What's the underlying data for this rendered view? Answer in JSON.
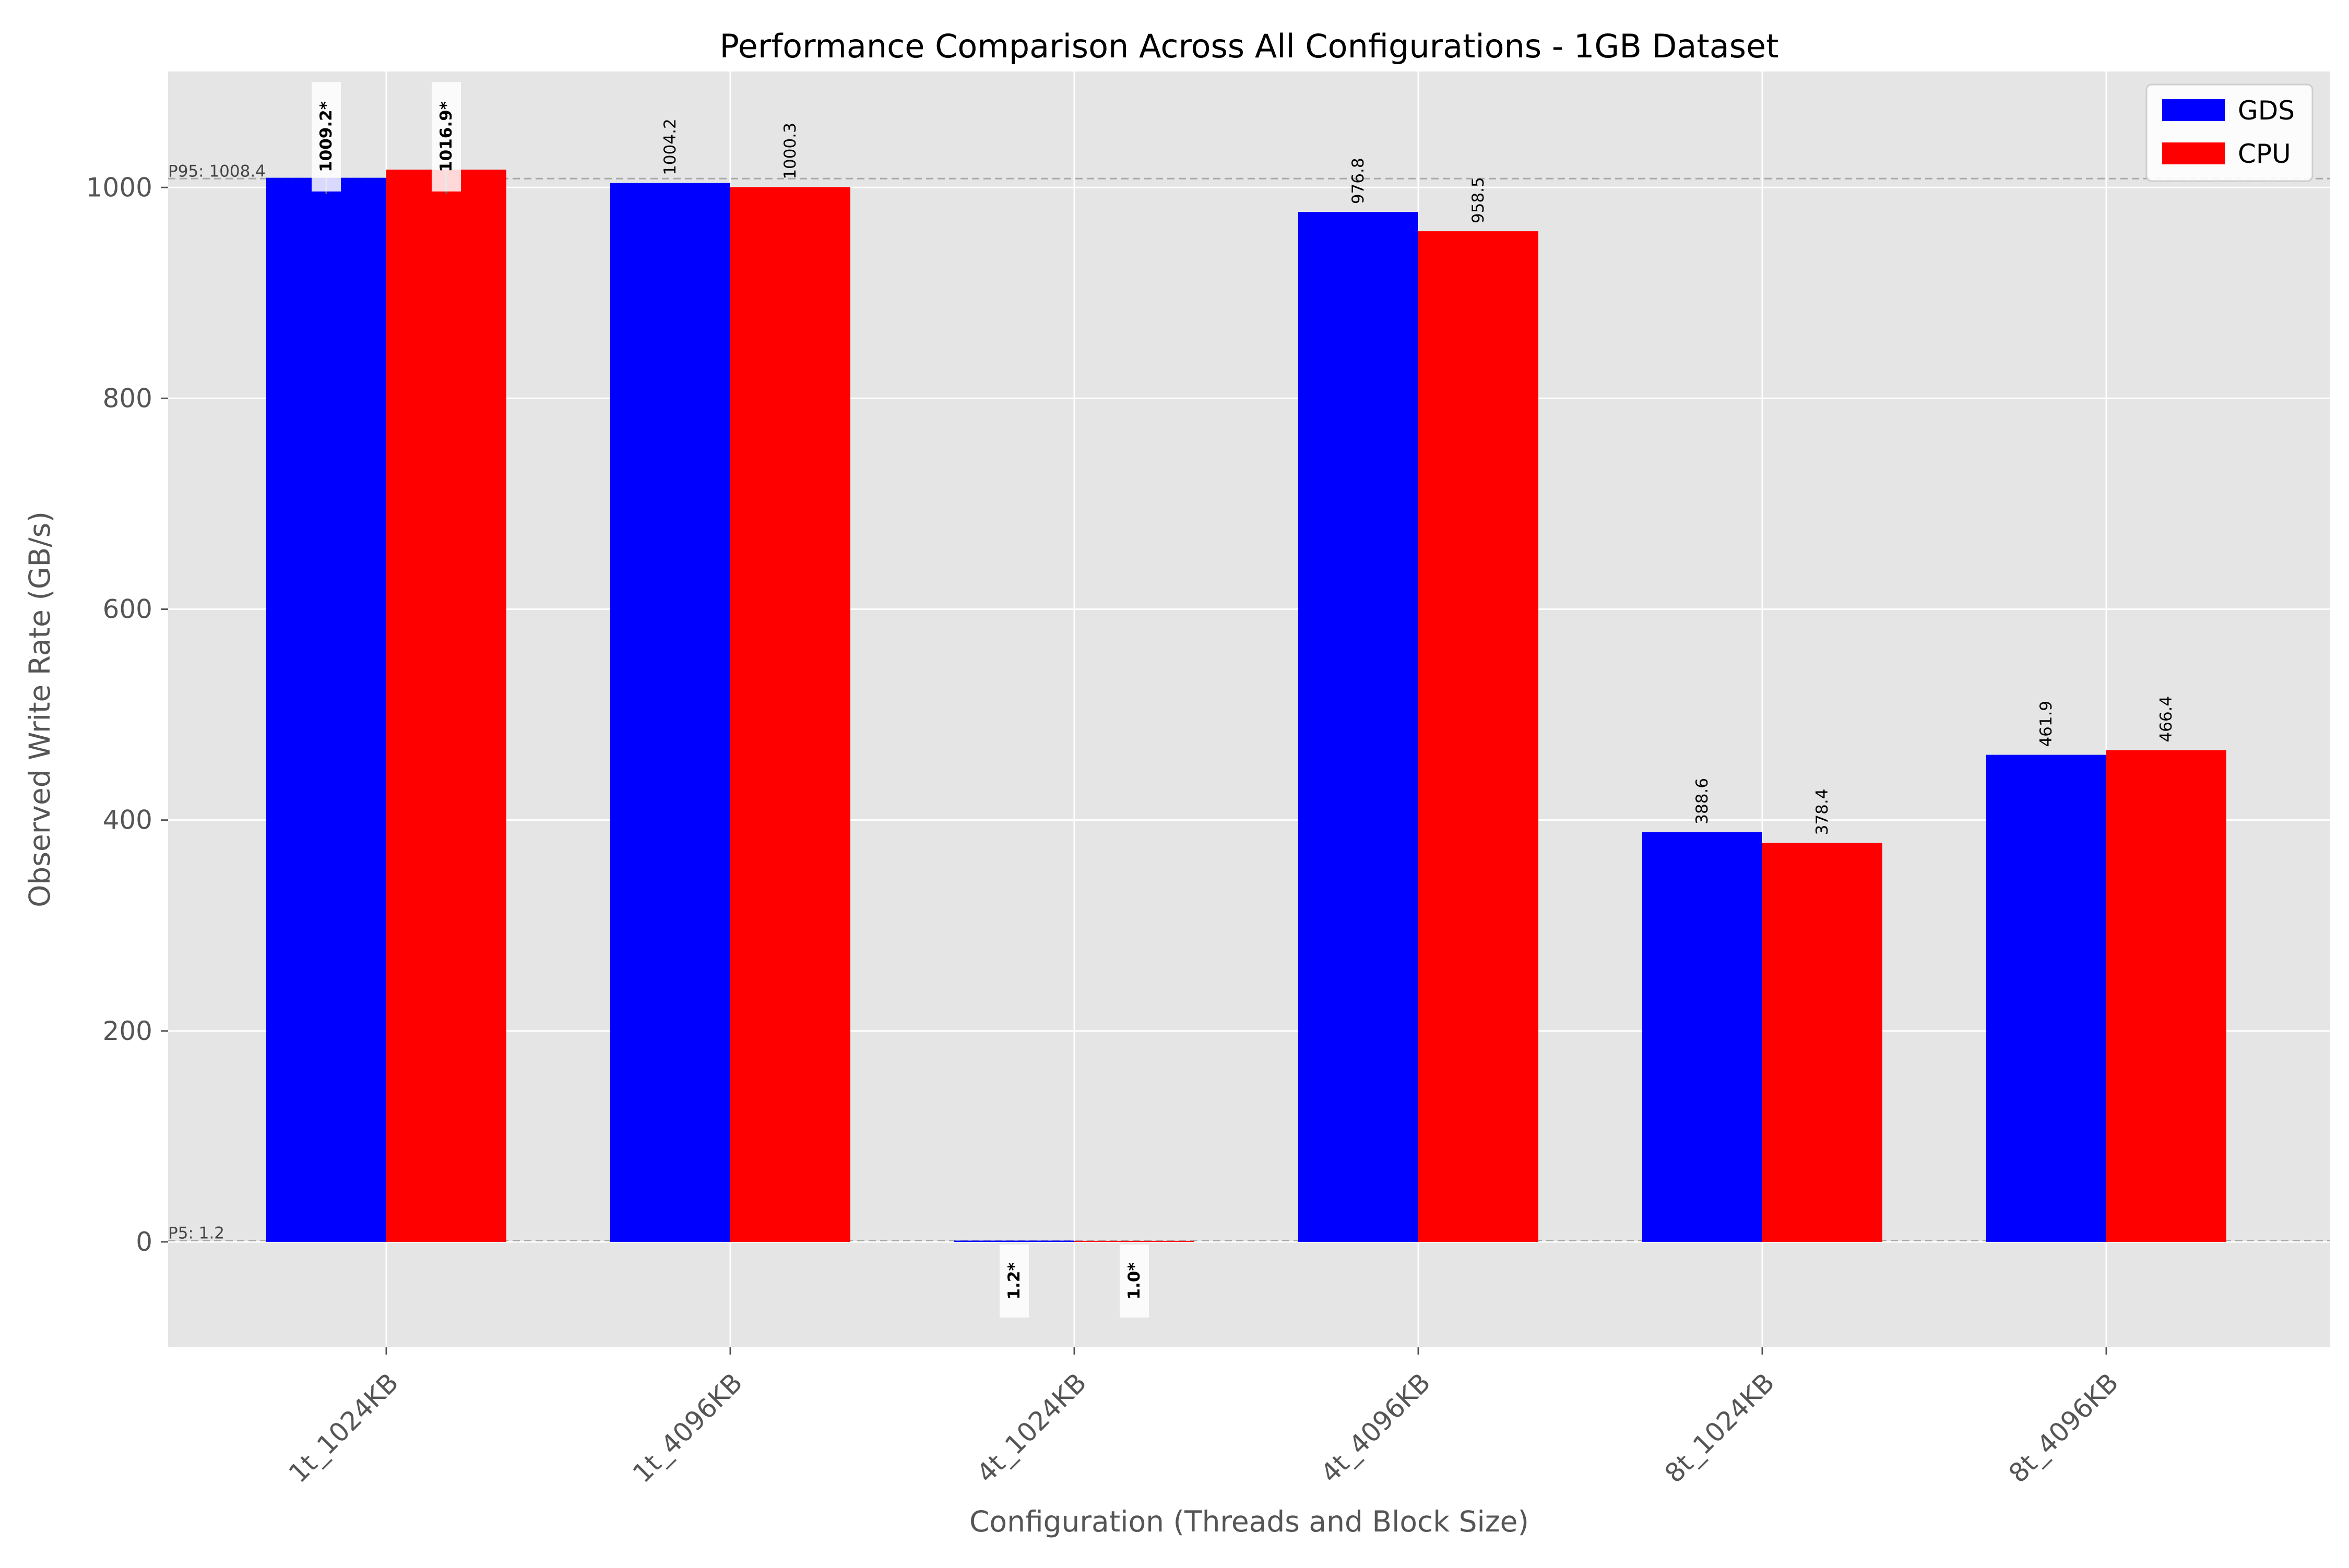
{
  "chart_data": {
    "type": "bar",
    "title": "Performance Comparison Across All Configurations - 1GB Dataset",
    "xlabel": "Configuration (Threads and Block Size)",
    "ylabel": "Observed Write Rate (GB/s)",
    "categories": [
      "1t_1024KB",
      "1t_4096KB",
      "4t_1024KB",
      "4t_4096KB",
      "8t_1024KB",
      "8t_4096KB"
    ],
    "series": [
      {
        "name": "GDS",
        "color": "#0000ff",
        "values": [
          1009.2,
          1004.2,
          1.2,
          976.8,
          388.6,
          461.9
        ],
        "labels": [
          "1009.2*",
          "1004.2",
          "1.2*",
          "976.8",
          "388.6",
          "461.9"
        ],
        "highlight": [
          true,
          false,
          true,
          false,
          false,
          false
        ]
      },
      {
        "name": "CPU",
        "color": "#ff0000",
        "values": [
          1016.9,
          1000.3,
          1.0,
          958.5,
          378.4,
          466.4
        ],
        "labels": [
          "1016.9*",
          "1000.3",
          "1.0*",
          "958.5",
          "378.4",
          "466.4"
        ],
        "highlight": [
          true,
          false,
          true,
          false,
          false,
          false
        ]
      }
    ],
    "ylim": [
      -100,
      1110
    ],
    "yticks": [
      0,
      200,
      400,
      600,
      800,
      1000
    ],
    "grid": true,
    "legend": "top-right",
    "reference_lines": [
      {
        "value": 1008.4,
        "label": "P95: 1008.4"
      },
      {
        "value": 1.2,
        "label": "P5: 1.2"
      }
    ],
    "colors": {
      "background": "#e5e5e5",
      "grid": "#ffffff",
      "reference": "#a8a8a8"
    }
  }
}
